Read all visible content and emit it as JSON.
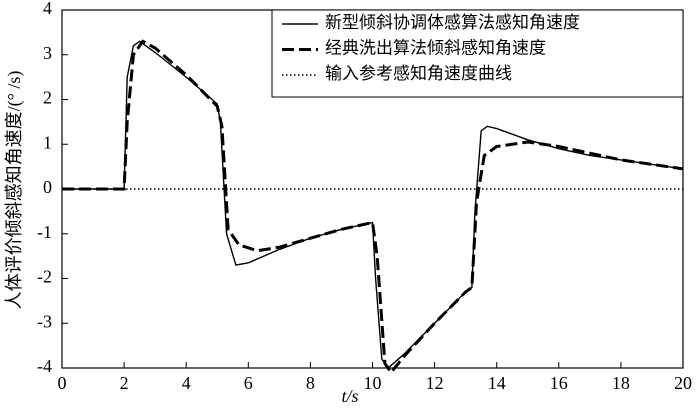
{
  "chart_data": {
    "type": "line",
    "x_label": "t/s",
    "y_label": "人体评价倾斜感知角速度/(°  /s)",
    "xlim": [
      0,
      20
    ],
    "xticks": [
      0,
      2,
      4,
      6,
      8,
      10,
      12,
      14,
      16,
      18,
      20
    ],
    "ylim": [
      -4,
      4
    ],
    "yticks": [
      -4,
      -3,
      -2,
      -1,
      0,
      1,
      2,
      3,
      4
    ],
    "legend": "upper right",
    "series": [
      {
        "name": "新型倾斜协调体感算法感知角速度",
        "color": "#000000",
        "style": "solid",
        "x": [
          0,
          2,
          2.1,
          2.3,
          2.5,
          3,
          4,
          5,
          5.1,
          5.3,
          5.6,
          6,
          7,
          8,
          9,
          10,
          10.1,
          10.3,
          10.5,
          11,
          12,
          13,
          13.2,
          13.3,
          13.5,
          13.7,
          14,
          15,
          16,
          17,
          18,
          19,
          20
        ],
        "values": [
          0,
          0,
          2.5,
          3.2,
          3.3,
          3.05,
          2.5,
          1.9,
          1.5,
          -1.0,
          -1.7,
          -1.65,
          -1.35,
          -1.1,
          -0.9,
          -0.75,
          -2.0,
          -3.8,
          -4.0,
          -3.7,
          -3.0,
          -2.3,
          -2.2,
          -0.5,
          1.3,
          1.4,
          1.35,
          1.1,
          0.9,
          0.75,
          0.65,
          0.55,
          0.45
        ]
      },
      {
        "name": "经典洗出算法倾斜感知角速度",
        "color": "#000000",
        "style": "dashed",
        "x": [
          0,
          2,
          2.1,
          2.3,
          2.6,
          3,
          4,
          5,
          5.15,
          5.35,
          5.7,
          6.3,
          7,
          8,
          9,
          10,
          10.15,
          10.4,
          10.6,
          11,
          12,
          13,
          13.2,
          13.35,
          13.6,
          14,
          15,
          16,
          17,
          18,
          19,
          20
        ],
        "values": [
          0,
          0,
          1.5,
          3.0,
          3.3,
          3.15,
          2.55,
          1.85,
          1.4,
          -0.9,
          -1.25,
          -1.38,
          -1.3,
          -1.1,
          -0.9,
          -0.75,
          -1.5,
          -3.9,
          -4.1,
          -3.75,
          -3.0,
          -2.3,
          -2.2,
          -0.3,
          0.75,
          0.95,
          1.05,
          0.95,
          0.8,
          0.65,
          0.55,
          0.45
        ]
      },
      {
        "name": "输入参考感知角速度曲线",
        "color": "#000000",
        "style": "dotted",
        "x": [
          0,
          20
        ],
        "values": [
          0,
          0
        ]
      }
    ]
  }
}
